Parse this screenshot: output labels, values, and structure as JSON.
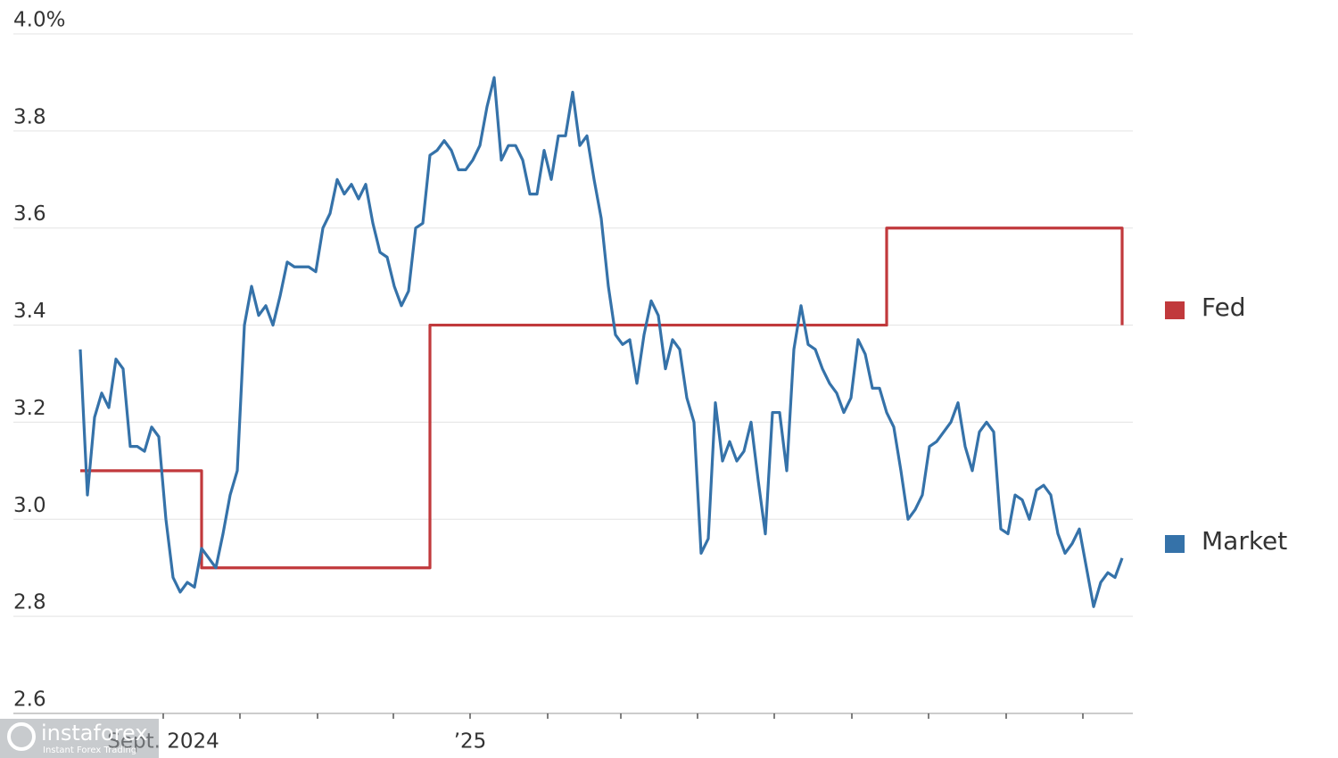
{
  "chart_data": {
    "type": "line",
    "x_tick_labels": [
      "Sept. 2024",
      "’25"
    ],
    "ylim": [
      2.6,
      4.0
    ],
    "yticks": [
      2.6,
      2.8,
      {
        "value": 3,
        "label": "3.0"
      },
      3.2,
      3.4,
      3.6,
      3.8,
      {
        "value": 4,
        "label": "4.0%"
      }
    ],
    "grid": true,
    "legend": "right",
    "series": [
      {
        "name": "Fed",
        "color": "#c1393c",
        "step": true,
        "values": [
          3.1,
          3.1,
          3.1,
          3.1,
          3.1,
          3.1,
          3.1,
          3.1,
          3.1,
          3.1,
          3.1,
          3.1,
          3.1,
          3.1,
          3.1,
          3.1,
          3.1,
          2.9,
          2.9,
          2.9,
          2.9,
          2.9,
          2.9,
          2.9,
          2.9,
          2.9,
          2.9,
          2.9,
          2.9,
          2.9,
          2.9,
          2.9,
          2.9,
          2.9,
          2.9,
          2.9,
          2.9,
          2.9,
          2.9,
          2.9,
          2.9,
          2.9,
          2.9,
          2.9,
          2.9,
          2.9,
          2.9,
          2.9,
          2.9,
          3.4,
          3.4,
          3.4,
          3.4,
          3.4,
          3.4,
          3.4,
          3.4,
          3.4,
          3.4,
          3.4,
          3.4,
          3.4,
          3.4,
          3.4,
          3.4,
          3.4,
          3.4,
          3.4,
          3.4,
          3.4,
          3.4,
          3.4,
          3.4,
          3.4,
          3.4,
          3.4,
          3.4,
          3.4,
          3.4,
          3.4,
          3.4,
          3.4,
          3.4,
          3.4,
          3.4,
          3.4,
          3.4,
          3.4,
          3.4,
          3.4,
          3.4,
          3.4,
          3.4,
          3.4,
          3.4,
          3.4,
          3.4,
          3.4,
          3.4,
          3.4,
          3.4,
          3.4,
          3.4,
          3.4,
          3.4,
          3.4,
          3.4,
          3.4,
          3.4,
          3.4,
          3.4,
          3.4,
          3.4,
          3.6,
          3.6,
          3.6,
          3.6,
          3.6,
          3.6,
          3.6,
          3.6,
          3.6,
          3.6,
          3.6,
          3.6,
          3.6,
          3.6,
          3.6,
          3.6,
          3.6,
          3.6,
          3.6,
          3.6,
          3.6,
          3.6,
          3.6,
          3.6,
          3.6,
          3.6,
          3.6,
          3.6,
          3.6,
          3.6,
          3.6,
          3.6,
          3.6,
          3.4
        ]
      },
      {
        "name": "Market",
        "color": "#3572a9",
        "step": false,
        "values": [
          3.35,
          3.05,
          3.21,
          3.26,
          3.23,
          3.33,
          3.31,
          3.15,
          3.15,
          3.14,
          3.19,
          3.17,
          3.0,
          2.88,
          2.85,
          2.87,
          2.86,
          2.94,
          2.92,
          2.9,
          2.97,
          3.05,
          3.1,
          3.4,
          3.48,
          3.42,
          3.44,
          3.4,
          3.46,
          3.53,
          3.52,
          3.52,
          3.52,
          3.51,
          3.6,
          3.63,
          3.7,
          3.67,
          3.69,
          3.66,
          3.69,
          3.61,
          3.55,
          3.54,
          3.48,
          3.44,
          3.47,
          3.6,
          3.61,
          3.75,
          3.76,
          3.78,
          3.76,
          3.72,
          3.72,
          3.74,
          3.77,
          3.85,
          3.91,
          3.74,
          3.77,
          3.77,
          3.74,
          3.67,
          3.67,
          3.76,
          3.7,
          3.79,
          3.79,
          3.88,
          3.77,
          3.79,
          3.7,
          3.62,
          3.48,
          3.38,
          3.36,
          3.37,
          3.28,
          3.38,
          3.45,
          3.42,
          3.31,
          3.37,
          3.35,
          3.25,
          3.2,
          2.93,
          2.96,
          3.24,
          3.12,
          3.16,
          3.12,
          3.14,
          3.2,
          3.08,
          2.97,
          3.22,
          3.22,
          3.1,
          3.35,
          3.44,
          3.36,
          3.35,
          3.31,
          3.28,
          3.26,
          3.22,
          3.25,
          3.37,
          3.34,
          3.27,
          3.27,
          3.22,
          3.19,
          3.1,
          3.0,
          3.02,
          3.05,
          3.15,
          3.16,
          3.18,
          3.2,
          3.24,
          3.15,
          3.1,
          3.18,
          3.2,
          3.18,
          2.98,
          2.97,
          3.05,
          3.04,
          3.0,
          3.06,
          3.07,
          3.05,
          2.97,
          2.93,
          2.95,
          2.98,
          2.9,
          2.82,
          2.87,
          2.89,
          2.88,
          2.92
        ]
      }
    ]
  },
  "watermark": {
    "brand": "instaforex",
    "tagline": "Instant Forex Trading"
  }
}
